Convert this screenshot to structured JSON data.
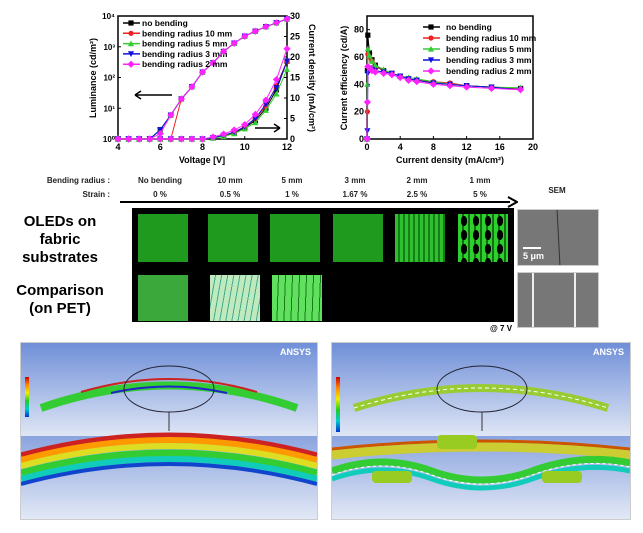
{
  "chart_data": [
    {
      "type": "line",
      "xlabel": "Voltage [V]",
      "ylabel": "Luminance (cd/m²)",
      "y2label": "Current density (mA/cm²)",
      "xlim": [
        4,
        12
      ],
      "ylim": [
        1,
        10000
      ],
      "yscale": "log",
      "y2lim": [
        0,
        30
      ],
      "xticks": [
        "4",
        "6",
        "8",
        "10",
        "12"
      ],
      "yticks": [
        "10⁰",
        "10¹",
        "10²",
        "10³",
        "10⁴"
      ],
      "y2ticks": [
        "0",
        "5",
        "10",
        "15",
        "20",
        "25",
        "30"
      ],
      "legend_position": "top-left",
      "x": [
        4,
        4.5,
        5,
        5.5,
        6,
        6.5,
        7,
        7.5,
        8,
        8.5,
        9,
        9.5,
        10,
        10.5,
        11,
        11.5,
        12
      ],
      "series": [
        {
          "name": "no bending",
          "color": "#000000",
          "marker": "square",
          "luminance": [
            1,
            1,
            1,
            1,
            2,
            6,
            20,
            50,
            150,
            300,
            700,
            1300,
            2200,
            3200,
            4500,
            6000,
            8000
          ],
          "current_density": [
            0,
            0,
            0,
            0,
            0,
            0,
            0,
            0,
            0,
            0.3,
            0.8,
            1.5,
            2.8,
            4.5,
            7.5,
            12,
            19
          ]
        },
        {
          "name": "bending radius 10 mm",
          "color": "#ee2222",
          "marker": "circle",
          "luminance": [
            1,
            1,
            1,
            1,
            1,
            1,
            20,
            50,
            150,
            300,
            700,
            1300,
            2200,
            3200,
            4500,
            6000,
            8000
          ],
          "current_density": [
            0,
            0,
            0,
            0,
            0,
            0,
            0,
            0,
            0,
            0.3,
            0.8,
            1.6,
            3,
            5,
            8,
            13,
            19
          ]
        },
        {
          "name": "bending radius 5 mm",
          "color": "#33cc33",
          "marker": "triangle-up",
          "luminance": [
            1,
            1,
            1,
            1,
            2,
            6,
            20,
            50,
            150,
            300,
            700,
            1300,
            2200,
            3200,
            4500,
            6000,
            8000
          ],
          "current_density": [
            0,
            0,
            0,
            0,
            0,
            0,
            0,
            0,
            0,
            0.2,
            0.6,
            1.3,
            2.5,
            4,
            7,
            11,
            17
          ]
        },
        {
          "name": "bending radius 3 mm",
          "color": "#1111dd",
          "marker": "triangle-down",
          "luminance": [
            1,
            1,
            1,
            1,
            2,
            6,
            20,
            50,
            150,
            300,
            700,
            1300,
            2200,
            3200,
            4500,
            6000,
            8000
          ],
          "current_density": [
            0,
            0,
            0,
            0,
            0,
            0,
            0,
            0,
            0,
            0.3,
            0.9,
            1.7,
            3,
            5,
            8.5,
            12.5,
            19
          ]
        },
        {
          "name": "bending radius 2 mm",
          "color": "#ff22ff",
          "marker": "diamond",
          "luminance": [
            1,
            1,
            1,
            1,
            1.5,
            6,
            20,
            50,
            150,
            300,
            700,
            1300,
            2200,
            3200,
            4500,
            6000,
            8000
          ],
          "current_density": [
            0,
            0,
            0,
            0,
            0,
            0,
            0,
            0,
            0,
            0.5,
            1.2,
            2.2,
            3.5,
            6,
            9.5,
            14.5,
            22
          ]
        }
      ]
    },
    {
      "type": "line",
      "xlabel": "Current density (mA/cm²)",
      "ylabel": "Current efficiency (cd/A)",
      "xlim": [
        0,
        20
      ],
      "ylim": [
        0,
        90
      ],
      "xticks": [
        "0",
        "4",
        "8",
        "12",
        "16",
        "20"
      ],
      "yticks": [
        "0",
        "20",
        "40",
        "60",
        "80"
      ],
      "legend_position": "top-right",
      "x": [
        0,
        0.05,
        0.1,
        0.3,
        0.6,
        1,
        2,
        3,
        4,
        5,
        6,
        8,
        10,
        12,
        15,
        18.5
      ],
      "series": [
        {
          "name": "no bending",
          "color": "#000000",
          "marker": "square",
          "values": [
            0,
            50,
            76,
            63,
            58,
            54,
            50,
            48,
            46,
            44,
            43,
            41,
            40,
            39,
            38,
            37
          ]
        },
        {
          "name": "bending radius 10 mm",
          "color": "#ee2222",
          "marker": "circle",
          "values": [
            0,
            20,
            62,
            60,
            57,
            53,
            50,
            48,
            46,
            44,
            43,
            42,
            41,
            39,
            38,
            37
          ]
        },
        {
          "name": "bending radius 5 mm",
          "color": "#33cc33",
          "marker": "triangle-up",
          "values": [
            0,
            40,
            66,
            61,
            57,
            54,
            51,
            48,
            46,
            45,
            44,
            42,
            40,
            39,
            38,
            37.5
          ]
        },
        {
          "name": "bending radius 3 mm",
          "color": "#1111dd",
          "marker": "triangle-down",
          "values": [
            0,
            6,
            48,
            52,
            51,
            50,
            49,
            48,
            46,
            44,
            43,
            41,
            40,
            39,
            38,
            36
          ]
        },
        {
          "name": "bending radius 2 mm",
          "color": "#ff22ff",
          "marker": "diamond",
          "values": [
            0,
            27,
            53,
            52,
            50,
            49,
            48,
            47,
            45,
            43,
            42,
            40,
            39,
            38,
            37,
            36
          ]
        }
      ]
    }
  ],
  "photo_panel": {
    "radius_label": "Bending radius :",
    "strain_label": "Strain :",
    "columns": [
      {
        "radius": "No bending",
        "strain": "0 %"
      },
      {
        "radius": "10 mm",
        "strain": "0.5 %"
      },
      {
        "radius": "5 mm",
        "strain": "1 %"
      },
      {
        "radius": "3 mm",
        "strain": "1.67 %"
      },
      {
        "radius": "2 mm",
        "strain": "2.5 %"
      },
      {
        "radius": "1 mm",
        "strain": "5 %"
      }
    ],
    "row1_label": "OLEDs on fabric substrates",
    "row2_label": "Comparison (on PET)",
    "sem_label": "SEM",
    "scale_bar": "5 μm",
    "voltage_note": "@ 7 V",
    "emission_color": "#22bb22"
  },
  "simulations": {
    "brand": "ANSYS"
  }
}
